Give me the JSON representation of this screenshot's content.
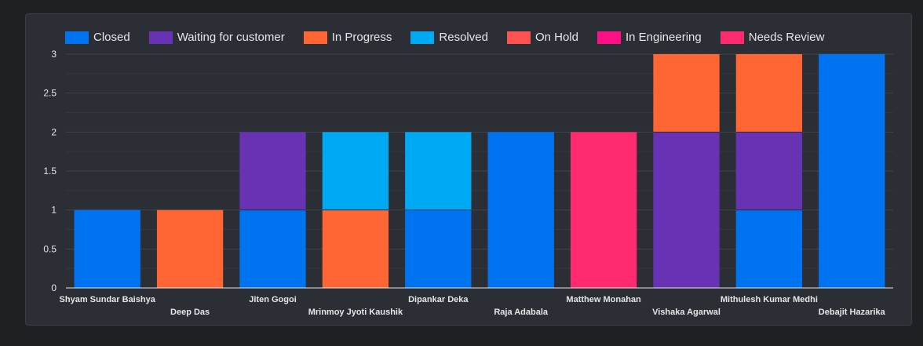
{
  "chart_data": {
    "type": "bar",
    "stacked": true,
    "categories": [
      "Shyam Sundar Baishya",
      "Deep Das",
      "Jiten Gogoi",
      "Mrinmoy Jyoti Kaushik",
      "Dipankar Deka",
      "Raja Adabala",
      "Matthew Monahan",
      "Vishaka Agarwal",
      "Mithulesh Kumar Medhi",
      "Debajit Hazarika"
    ],
    "series": [
      {
        "name": "Closed",
        "color": "#0073f0",
        "values": [
          1,
          0,
          1,
          0,
          1,
          2,
          0,
          0,
          1,
          3
        ]
      },
      {
        "name": "Waiting for customer",
        "color": "#6733b4",
        "values": [
          0,
          0,
          1,
          0,
          0,
          0,
          0,
          2,
          1,
          0
        ]
      },
      {
        "name": "In Progress",
        "color": "#ff6633",
        "values": [
          0,
          1,
          0,
          1,
          0,
          0,
          0,
          1,
          1,
          0
        ]
      },
      {
        "name": "Resolved",
        "color": "#00a9f4",
        "values": [
          0,
          0,
          0,
          1,
          1,
          0,
          0,
          0,
          0,
          0
        ]
      },
      {
        "name": "On Hold",
        "color": "#ff5252",
        "values": [
          0,
          0,
          0,
          0,
          0,
          0,
          0,
          0,
          0,
          0
        ]
      },
      {
        "name": "In Engineering",
        "color": "#ff0f86",
        "values": [
          0,
          0,
          0,
          0,
          0,
          0,
          0,
          0,
          0,
          0
        ]
      },
      {
        "name": "Needs Review",
        "color": "#ff2a6f",
        "values": [
          0,
          0,
          0,
          0,
          0,
          0,
          2,
          0,
          0,
          0
        ]
      }
    ],
    "y_ticks": [
      "0",
      "0.5",
      "1",
      "1.5",
      "2",
      "2.5",
      "3"
    ],
    "ylim": [
      0,
      3
    ],
    "legend_position": "top",
    "grid": true
  }
}
